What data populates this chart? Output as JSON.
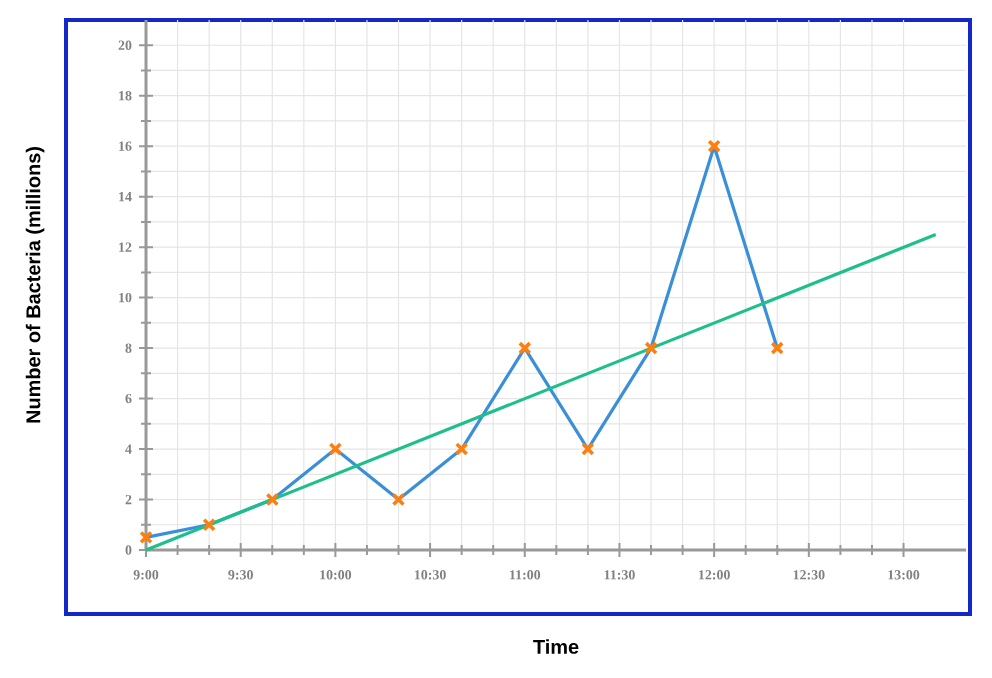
{
  "chart_data": {
    "type": "line",
    "xlabel": "Time",
    "ylabel": "Number of Bacteria (millions)",
    "xlim": [
      9,
      13.33
    ],
    "ylim": [
      0,
      21
    ],
    "xticks": [
      {
        "value": 9,
        "label": "9:00"
      },
      {
        "value": 9.5,
        "label": "9:30"
      },
      {
        "value": 10,
        "label": "10:00"
      },
      {
        "value": 10.5,
        "label": "10:30"
      },
      {
        "value": 11,
        "label": "11:00"
      },
      {
        "value": 11.5,
        "label": "11:30"
      },
      {
        "value": 12,
        "label": "12:00"
      },
      {
        "value": 12.5,
        "label": "12:30"
      },
      {
        "value": 13,
        "label": "13:00"
      }
    ],
    "yticks": [
      0,
      2,
      4,
      6,
      8,
      10,
      12,
      14,
      16,
      18,
      20
    ],
    "grid": true,
    "series": [
      {
        "color": "#3a8fd9",
        "marker": "cross",
        "colors": [
          "#ff7f0e",
          "#ff7f0e",
          "#ff7f0e",
          "#ff7f0e",
          "#ff7f0e",
          "#ff7f0e",
          "#ff7f0e",
          "#ff7f0e",
          "#ff7f0e",
          "#ff7f0e",
          "#ff7f0e"
        ],
        "x": [
          9,
          9.333,
          9.667,
          10,
          10.333,
          10.667,
          11,
          11.333,
          11.667,
          12,
          12.333
        ],
        "values": [
          0.5,
          1,
          2,
          4,
          2,
          4,
          8,
          4,
          8,
          16,
          8
        ]
      },
      {
        "color": "#1dbf8a",
        "marker": "none",
        "x": [
          9,
          13.17
        ],
        "values": [
          0,
          12.5
        ]
      }
    ]
  }
}
